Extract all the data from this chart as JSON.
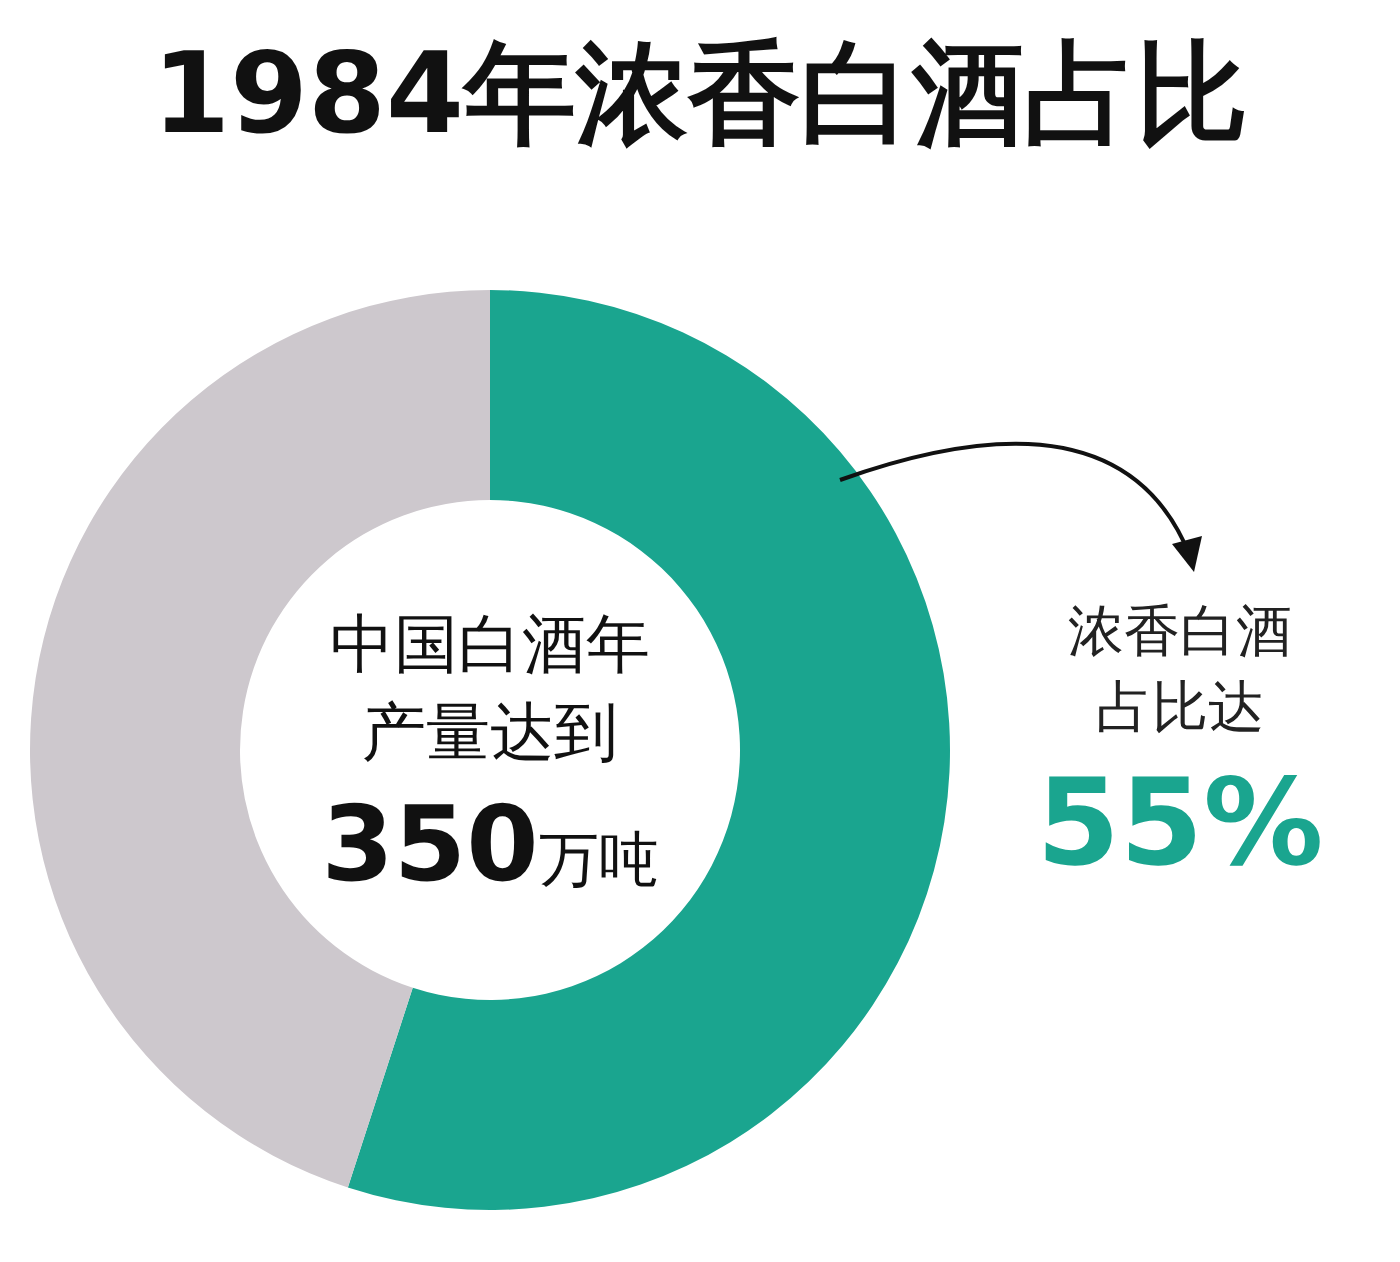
{
  "chart_data": {
    "type": "donut",
    "title": "1984年浓香白酒占比",
    "categories": [
      null,
      null
    ],
    "values": [
      55,
      45
    ],
    "colors": [
      "#1aa58f",
      "#cdc8cd"
    ],
    "value_labels": [
      "55%",
      null
    ],
    "annotations": [
      "中国白酒年",
      "产量达到",
      "350万吨",
      "浓香白酒",
      "占比达"
    ]
  }
}
